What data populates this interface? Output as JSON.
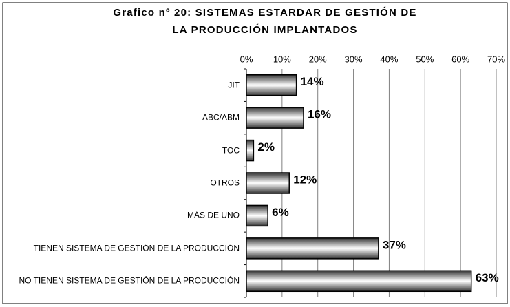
{
  "chart_data": {
    "type": "bar",
    "orientation": "horizontal",
    "title": [
      "Grafico nº 20: SISTEMAS ESTARDAR DE GESTIÓN DE",
      "LA PRODUCCIÓN IMPLANTADOS"
    ],
    "categories": [
      "JIT",
      "ABC/ABM",
      "TOC",
      "OTROS",
      "MÁS DE UNO",
      "TIENEN SISTEMA DE GESTIÓN DE LA PRODUCCIÓN",
      "NO TIENEN SISTEMA DE GESTIÓN DE LA PRODUCCIÓN"
    ],
    "values": [
      14,
      16,
      2,
      12,
      6,
      37,
      63
    ],
    "value_labels": [
      "14%",
      "16%",
      "2%",
      "12%",
      "6%",
      "37%",
      "63%"
    ],
    "xlim": [
      0,
      70
    ],
    "xticks": [
      {
        "value": 0,
        "label": "0%"
      },
      {
        "value": 10,
        "label": "10%"
      },
      {
        "value": 20,
        "label": "20%"
      },
      {
        "value": 30,
        "label": "30%"
      },
      {
        "value": 40,
        "label": "40%"
      },
      {
        "value": 50,
        "label": "50%"
      },
      {
        "value": 60,
        "label": "60%"
      },
      {
        "value": 70,
        "label": "70%"
      }
    ],
    "grid": true,
    "color": "#808080"
  }
}
